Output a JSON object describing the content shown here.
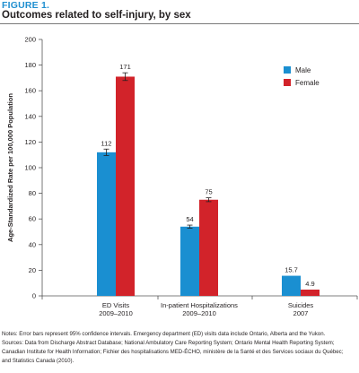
{
  "figure_label": "FIGURE 1.",
  "figure_title": "Outcomes related to self-injury, by sex",
  "chart_data": {
    "type": "bar",
    "ylabel": "Age-Standardized Rate per 100,000 Population",
    "xlabel": "",
    "ylim": [
      0,
      200
    ],
    "yticks": [
      0,
      20,
      40,
      60,
      80,
      100,
      120,
      140,
      160,
      180,
      200
    ],
    "categories": [
      {
        "line1": "ED Visits",
        "line2": "2009–2010"
      },
      {
        "line1": "In-patient Hospitalizations",
        "line2": "2009–2010"
      },
      {
        "line1": "Suicides",
        "line2": "2007"
      }
    ],
    "series": [
      {
        "name": "Male",
        "color": "#1a8fd1",
        "values": [
          112,
          54,
          15.7
        ],
        "labels": [
          "112",
          "54",
          "15.7"
        ],
        "error": [
          2.5,
          1.2,
          null
        ]
      },
      {
        "name": "Female",
        "color": "#d2232a",
        "values": [
          171,
          75,
          4.9
        ],
        "labels": [
          "171",
          "75",
          "4.9"
        ],
        "error": [
          3.0,
          1.5,
          null
        ]
      }
    ],
    "legend_position": "top-right",
    "grid": false
  },
  "notes": [
    "Notes: Error bars represent 95% confidence intervals. Emergency department (ED) visits data include Ontario, Alberta and the Yukon.",
    "Sources: Data from Discharge Abstract Database; National Ambulatory Care Reporting System; Ontario Mental Health Reporting System;",
    "Canadian Institute for Health Information; Fichier des hospitalisations MED-ÉCHO, ministère de la Santé et des Services sociaux du Québec;",
    "and Statistics Canada (2010)."
  ]
}
